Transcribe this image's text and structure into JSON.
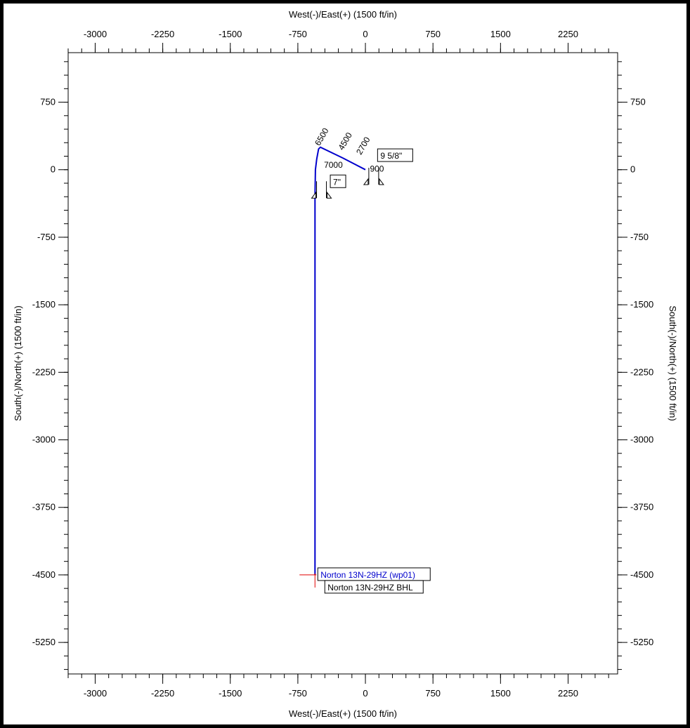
{
  "chart_data": {
    "type": "line",
    "title": "",
    "xlabel": "West(-)/East(+) (1500 ft/in)",
    "ylabel": "South(-)/North(+) (1500 ft/in)",
    "xlim": [
      -3300,
      2800
    ],
    "ylim": [
      -5600,
      1300
    ],
    "x_ticks": [
      -3000,
      -2250,
      -1500,
      -750,
      0,
      750,
      1500,
      2250
    ],
    "y_ticks": [
      750,
      0,
      -750,
      -1500,
      -2250,
      -3000,
      -3750,
      -4500,
      -5250
    ],
    "x_tick_labels": [
      "-3000",
      "-2250",
      "-1500",
      "-750",
      "0",
      "750",
      "1500",
      "2250"
    ],
    "y_tick_labels": [
      "750",
      "0",
      "-750",
      "-1500",
      "-2250",
      "-3000",
      "-3750",
      "-4500",
      "-5250"
    ],
    "series": [
      {
        "color": "#0000cc",
        "x": [
          0,
          -250,
          -500,
          -520,
          -540,
          -555,
          -560,
          -560,
          -560
        ],
        "y": [
          0,
          130,
          250,
          230,
          120,
          0,
          -300,
          -2000,
          -4500
        ]
      }
    ],
    "depth_labels": [
      {
        "text": "6500",
        "x": -510,
        "y": 260
      },
      {
        "text": "4500",
        "x": -250,
        "y": 210
      },
      {
        "text": "2700",
        "x": -50,
        "y": 160
      },
      {
        "text": "7000",
        "x": -460,
        "y": 20
      },
      {
        "text": "900",
        "x": 50,
        "y": -20
      }
    ],
    "casing_labels": [
      {
        "text": "9 5/8\"",
        "x": 135,
        "y": 130
      },
      {
        "text": "7\"",
        "x": -390,
        "y": -160
      }
    ],
    "casing_markers": [
      {
        "x": -550,
        "y": -300
      },
      {
        "x": 30,
        "y": -150
      }
    ],
    "targets": [
      {
        "text": "Norton 13N-29HZ (wp01)",
        "x": -560,
        "y": -4500,
        "color": "#0000cc"
      },
      {
        "text": "Norton 13N-29HZ BHL",
        "x": -560,
        "y": -4500,
        "color": "#000000"
      }
    ]
  }
}
